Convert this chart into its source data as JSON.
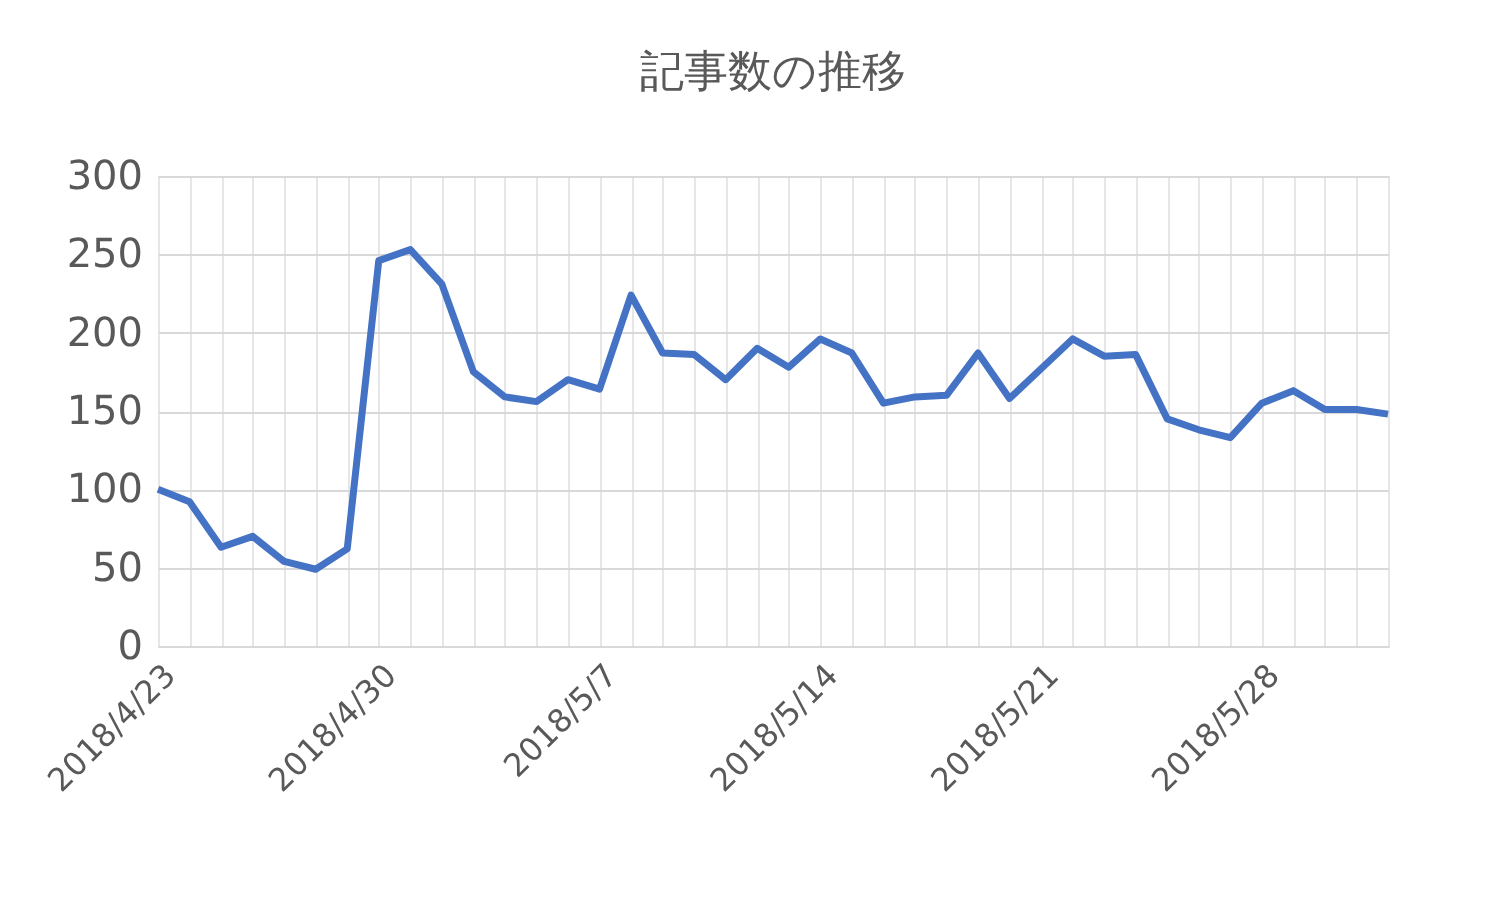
{
  "chart_data": {
    "type": "line",
    "title": "記事数の推移",
    "x": [
      "2018-04-23",
      "2018-04-24",
      "2018-04-25",
      "2018-04-26",
      "2018-04-27",
      "2018-04-28",
      "2018-04-29",
      "2018-04-30",
      "2018-05-01",
      "2018-05-02",
      "2018-05-03",
      "2018-05-04",
      "2018-05-05",
      "2018-05-06",
      "2018-05-07",
      "2018-05-08",
      "2018-05-09",
      "2018-05-10",
      "2018-05-11",
      "2018-05-12",
      "2018-05-13",
      "2018-05-14",
      "2018-05-15",
      "2018-05-16",
      "2018-05-17",
      "2018-05-18",
      "2018-05-19",
      "2018-05-20",
      "2018-05-21",
      "2018-05-22",
      "2018-05-23",
      "2018-05-24",
      "2018-05-25",
      "2018-05-26",
      "2018-05-27",
      "2018-05-28",
      "2018-05-29",
      "2018-05-30",
      "2018-05-31",
      "2018-06-01"
    ],
    "series": [
      {
        "color": "#4472c4",
        "values": [
          100,
          92,
          63,
          70,
          54,
          49,
          62,
          246,
          253,
          231,
          175,
          159,
          156,
          170,
          164,
          224,
          187,
          186,
          170,
          190,
          178,
          196,
          187,
          155,
          159,
          160,
          187,
          158,
          177,
          196,
          185,
          186,
          145,
          138,
          133,
          155,
          163,
          151,
          151,
          148
        ]
      }
    ],
    "xlim": [
      "2018-04-23",
      "2018-06-01"
    ],
    "xticks": [
      {
        "value": "2018-04-23",
        "label": "2018/4/23"
      },
      {
        "value": "2018-04-24",
        "label": null
      },
      {
        "value": "2018-04-25",
        "label": null
      },
      {
        "value": "2018-04-26",
        "label": null
      },
      {
        "value": "2018-04-27",
        "label": null
      },
      {
        "value": "2018-04-28",
        "label": null
      },
      {
        "value": "2018-04-29",
        "label": null
      },
      {
        "value": "2018-04-30",
        "label": "2018/4/30"
      },
      {
        "value": "2018-05-01",
        "label": null
      },
      {
        "value": "2018-05-02",
        "label": null
      },
      {
        "value": "2018-05-03",
        "label": null
      },
      {
        "value": "2018-05-04",
        "label": null
      },
      {
        "value": "2018-05-05",
        "label": null
      },
      {
        "value": "2018-05-06",
        "label": null
      },
      {
        "value": "2018-05-07",
        "label": "2018/5/7"
      },
      {
        "value": "2018-05-08",
        "label": null
      },
      {
        "value": "2018-05-09",
        "label": null
      },
      {
        "value": "2018-05-10",
        "label": null
      },
      {
        "value": "2018-05-11",
        "label": null
      },
      {
        "value": "2018-05-12",
        "label": null
      },
      {
        "value": "2018-05-13",
        "label": null
      },
      {
        "value": "2018-05-14",
        "label": "2018/5/14"
      },
      {
        "value": "2018-05-15",
        "label": null
      },
      {
        "value": "2018-05-16",
        "label": null
      },
      {
        "value": "2018-05-17",
        "label": null
      },
      {
        "value": "2018-05-18",
        "label": null
      },
      {
        "value": "2018-05-19",
        "label": null
      },
      {
        "value": "2018-05-20",
        "label": null
      },
      {
        "value": "2018-05-21",
        "label": "2018/5/21"
      },
      {
        "value": "2018-05-22",
        "label": null
      },
      {
        "value": "2018-05-23",
        "label": null
      },
      {
        "value": "2018-05-24",
        "label": null
      },
      {
        "value": "2018-05-25",
        "label": null
      },
      {
        "value": "2018-05-26",
        "label": null
      },
      {
        "value": "2018-05-27",
        "label": null
      },
      {
        "value": "2018-05-28",
        "label": "2018/5/28"
      },
      {
        "value": "2018-05-29",
        "label": null
      },
      {
        "value": "2018-05-30",
        "label": null
      },
      {
        "value": "2018-05-31",
        "label": null
      },
      {
        "value": "2018-06-01",
        "label": null
      }
    ],
    "ylim": [
      0,
      300
    ],
    "yticks": [
      0,
      50,
      100,
      150,
      200,
      250,
      300
    ],
    "grid": true,
    "legend": false,
    "marker": "none",
    "line_style": "solid"
  }
}
